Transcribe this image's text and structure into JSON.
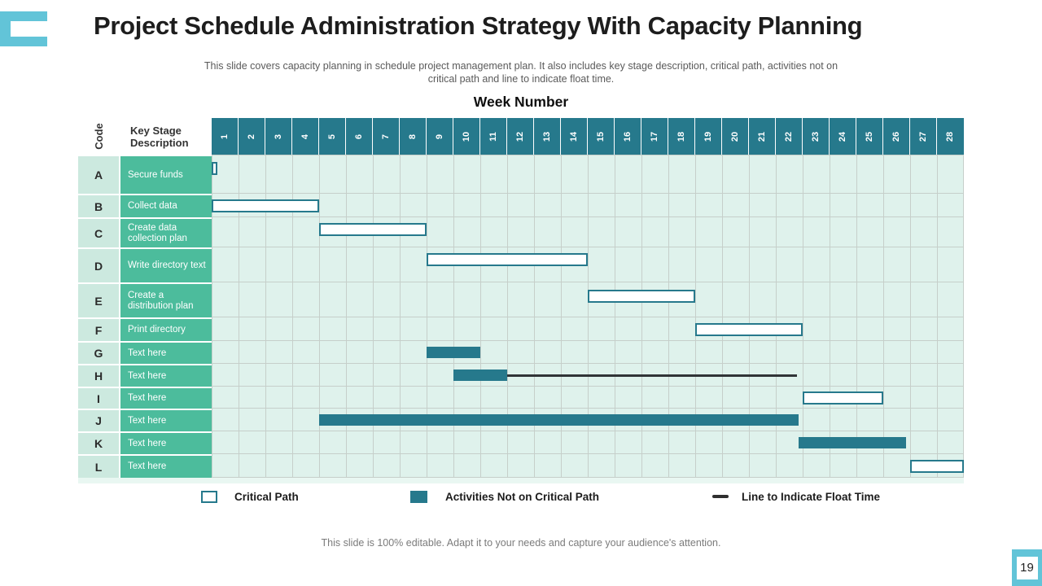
{
  "slide": {
    "title": "Project Schedule Administration Strategy With Capacity Planning",
    "subtitle": "This slide covers capacity planning in schedule project management plan. It also includes key stage description, critical path, activities not on critical path and line to indicate float time.",
    "footer": "This slide is 100% editable. Adapt it to your needs and capture your audience's attention.",
    "page_number": "19",
    "accent_color": "#62C4D8"
  },
  "legend": {
    "critical": "Critical Path",
    "noncritical": "Activities Not on Critical Path",
    "float_line": "Line to Indicate Float Time"
  },
  "chart_data": {
    "type": "gantt",
    "axis_title": "Week Number",
    "columns": {
      "code": "Code",
      "description": "Key Stage Description"
    },
    "weeks": [
      "1",
      "2",
      "3",
      "4",
      "5",
      "6",
      "7",
      "8",
      "9",
      "10",
      "11",
      "12",
      "13",
      "14",
      "15",
      "16",
      "17",
      "18",
      "19",
      "20",
      "21",
      "22",
      "23",
      "24",
      "25",
      "26",
      "27",
      "28"
    ],
    "week_count": 28,
    "colors": {
      "header_teal": "#26798C",
      "bar_noncritical": "#26798C",
      "bar_critical_fill": "#FFFFFF",
      "bar_critical_border": "#26798C",
      "row_label_green": "#4CBC9C",
      "code_cell_green": "#CCE9DF",
      "grid_cell": "#DFF2EC",
      "grid_line": "#C6CFCA",
      "float_line": "#303437"
    },
    "rows": [
      {
        "code": "A",
        "description": "Secure funds",
        "bars": [
          {
            "type": "critical",
            "from": 0,
            "to": 0.2
          }
        ]
      },
      {
        "code": "B",
        "description": "Collect data",
        "bars": [
          {
            "type": "critical",
            "from": 0,
            "to": 4
          }
        ]
      },
      {
        "code": "C",
        "description": "Create data collection plan",
        "bars": [
          {
            "type": "critical",
            "from": 4,
            "to": 8
          }
        ]
      },
      {
        "code": "D",
        "description": "Write directory text",
        "bars": [
          {
            "type": "critical",
            "from": 8,
            "to": 14
          }
        ]
      },
      {
        "code": "E",
        "description": "Create a distribution plan",
        "bars": [
          {
            "type": "critical",
            "from": 14,
            "to": 18
          }
        ]
      },
      {
        "code": "F",
        "description": "Print directory",
        "bars": [
          {
            "type": "critical",
            "from": 18,
            "to": 22
          }
        ]
      },
      {
        "code": "G",
        "description": "Text here",
        "bars": [
          {
            "type": "noncritical",
            "from": 8,
            "to": 10
          }
        ]
      },
      {
        "code": "H",
        "description": "Text here",
        "bars": [
          {
            "type": "noncritical",
            "from": 9,
            "to": 11
          },
          {
            "type": "float_line",
            "from": 11,
            "to": 21.8
          }
        ]
      },
      {
        "code": "I",
        "description": "Text here",
        "bars": [
          {
            "type": "critical",
            "from": 22,
            "to": 25
          }
        ]
      },
      {
        "code": "J",
        "description": "Text here",
        "bars": [
          {
            "type": "noncritical",
            "from": 4,
            "to": 21.85
          }
        ]
      },
      {
        "code": "K",
        "description": "Text here",
        "bars": [
          {
            "type": "noncritical",
            "from": 21.85,
            "to": 25.85
          }
        ]
      },
      {
        "code": "L",
        "description": "Text here",
        "bars": [
          {
            "type": "critical",
            "from": 26,
            "to": 28
          }
        ]
      }
    ]
  }
}
